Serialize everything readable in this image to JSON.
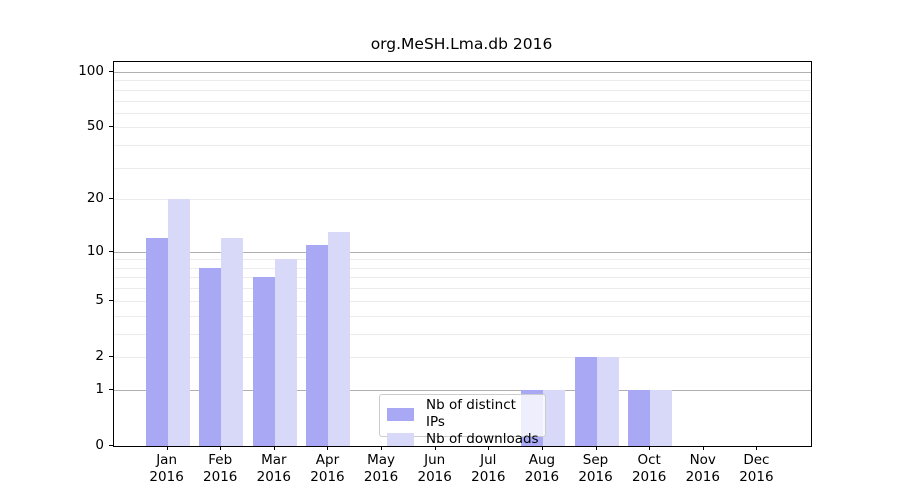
{
  "title": "org.MeSH.Lma.db 2016",
  "chart_data": {
    "type": "bar",
    "title": "org.MeSH.Lma.db 2016",
    "xlabel": "",
    "ylabel": "",
    "categories": [
      "Jan\n2016",
      "Feb\n2016",
      "Mar\n2016",
      "Apr\n2016",
      "May\n2016",
      "Jun\n2016",
      "Jul\n2016",
      "Aug\n2016",
      "Sep\n2016",
      "Oct\n2016",
      "Nov\n2016",
      "Dec\n2016"
    ],
    "series": [
      {
        "name": "Nb of distinct IPs",
        "color": "#a8a8f4",
        "values": [
          12,
          8,
          7,
          11,
          0,
          0,
          0,
          1,
          2,
          1,
          0,
          0
        ]
      },
      {
        "name": "Nb of downloads",
        "color": "#d8d8f9",
        "values": [
          20,
          12,
          9,
          13,
          0,
          0,
          0,
          1,
          2,
          1,
          0,
          0
        ]
      }
    ],
    "yscale": "log1p",
    "ylim": [
      0,
      113
    ],
    "yticks": [
      0,
      1,
      2,
      5,
      10,
      20,
      50,
      100
    ],
    "major_gridline_values": [
      1,
      10,
      100
    ],
    "minor_gridline_values": [
      2,
      3,
      4,
      5,
      6,
      7,
      8,
      9,
      20,
      30,
      40,
      50,
      60,
      70,
      80,
      90
    ],
    "grid": true,
    "legend_position": "lower center inside"
  },
  "colors": {
    "background": "#ffffff",
    "spine": "#000000",
    "text": "#000000",
    "major_grid": "#b0b0b0",
    "minor_grid": "#ececec",
    "legend_border": "#cccccc",
    "legend_bg": "rgba(255,255,255,0.8)"
  }
}
